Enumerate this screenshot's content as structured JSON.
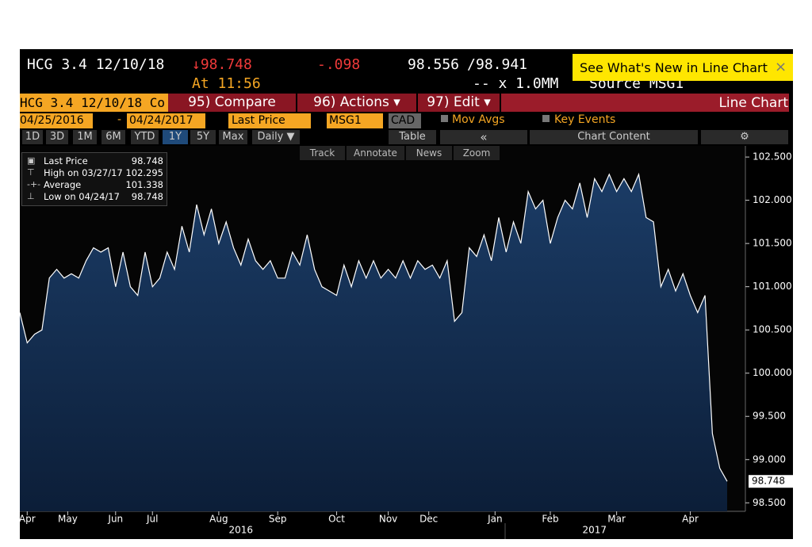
{
  "header": {
    "ticker": "HCG 3.4 12/10/18",
    "last": "↓98.748",
    "time": "At 11:56",
    "change": "-.098",
    "bid": "98.556",
    "slash": "/",
    "ask": "98.941",
    "size": "-- x 1.0MM",
    "source": "Source MSG1",
    "popup": "See What's New in Line Chart",
    "popup_close": "×"
  },
  "toolbar": {
    "security": "HCG 3.4 12/10/18 Co",
    "tabs": [
      "95) Compare",
      "96) Actions ▾",
      "97) Edit ▾"
    ],
    "view": "Line Chart"
  },
  "controls": {
    "start": "04/25/2016",
    "dash": "-",
    "end": "04/24/2017",
    "field": "Last Price",
    "source": "MSG1",
    "currency": "CAD",
    "mov_avgs": "Mov Avgs",
    "key_events": "Key Events"
  },
  "periods": [
    "1D",
    "3D",
    "1M",
    "6M",
    "YTD",
    "1Y",
    "5Y",
    "Max",
    "Daily ▼"
  ],
  "options": {
    "table": "Table",
    "collapse": "«",
    "chart_content": "Chart Content"
  },
  "tools": [
    "Track",
    "Annotate",
    "News",
    "Zoom"
  ],
  "legend": [
    {
      "label": "Last Price",
      "value": "98.748"
    },
    {
      "label": "High on 03/27/17",
      "value": "102.295"
    },
    {
      "label": "Average",
      "value": "101.338"
    },
    {
      "label": "Low on 04/24/17",
      "value": "98.748"
    }
  ],
  "chart_data": {
    "type": "area",
    "values": [
      100.7,
      100.35,
      100.45,
      100.5,
      101.1,
      101.2,
      101.1,
      101.15,
      101.1,
      101.3,
      101.45,
      101.4,
      101.45,
      101.0,
      101.4,
      101.0,
      100.9,
      101.4,
      101.0,
      101.1,
      101.4,
      101.2,
      101.7,
      101.4,
      101.95,
      101.6,
      101.9,
      101.5,
      101.75,
      101.45,
      101.25,
      101.55,
      101.3,
      101.2,
      101.3,
      101.1,
      101.1,
      101.4,
      101.25,
      101.6,
      101.2,
      101.0,
      100.95,
      100.9,
      101.25,
      101.0,
      101.3,
      101.1,
      101.3,
      101.1,
      101.2,
      101.1,
      101.3,
      101.1,
      101.3,
      101.2,
      101.25,
      101.1,
      101.3,
      100.6,
      100.7,
      101.45,
      101.35,
      101.6,
      101.3,
      101.8,
      101.4,
      101.75,
      101.5,
      102.1,
      101.9,
      102.0,
      101.5,
      101.8,
      102.0,
      101.9,
      102.2,
      101.8,
      102.25,
      102.1,
      102.3,
      102.1,
      102.25,
      102.1,
      102.3,
      101.8,
      101.75,
      101.0,
      101.2,
      100.95,
      101.15,
      100.9,
      100.7,
      100.9,
      99.3,
      98.9,
      98.748
    ],
    "color": "#ffffff",
    "ylim": [
      98.42,
      102.62
    ],
    "yticks": [
      {
        "value": 98.5,
        "label": "98.500"
      },
      {
        "value": 99,
        "label": "99.000"
      },
      {
        "value": 99.5,
        "label": "99.500"
      },
      {
        "value": 100,
        "label": "100.000"
      },
      {
        "value": 100.5,
        "label": "100.500"
      },
      {
        "value": 101,
        "label": "101.000"
      },
      {
        "value": 101.5,
        "label": "101.500"
      },
      {
        "value": 102,
        "label": "102.000"
      },
      {
        "value": 102.5,
        "label": "102.500"
      }
    ],
    "xlim": [
      0,
      96
    ],
    "xticks": [
      {
        "value": 1,
        "label": "Apr"
      },
      {
        "value": 6.5,
        "label": "May"
      },
      {
        "value": 13,
        "label": "Jun"
      },
      {
        "value": 18,
        "label": "Jul"
      },
      {
        "value": 27,
        "label": "Aug"
      },
      {
        "value": 35,
        "label": "Sep"
      },
      {
        "value": 43,
        "label": "Oct"
      },
      {
        "value": 50,
        "label": "Nov"
      },
      {
        "value": 55.5,
        "label": "Dec"
      },
      {
        "value": 64.5,
        "label": "Jan"
      },
      {
        "value": 72,
        "label": "Feb"
      },
      {
        "value": 81,
        "label": "Mar"
      },
      {
        "value": 91,
        "label": "Apr"
      }
    ],
    "year_ticks": [
      {
        "value": 30,
        "label": "2016"
      },
      {
        "value": 78,
        "label": "2017"
      }
    ]
  }
}
